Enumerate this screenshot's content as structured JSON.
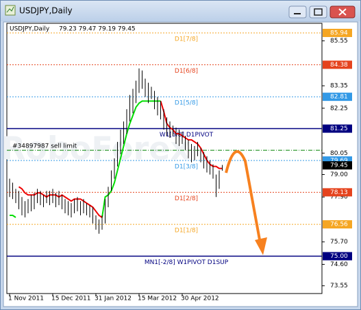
{
  "window_title": "USDJPY,Daily",
  "chart_data": {
    "type": "hilo",
    "title": "USDJPY,Daily",
    "quote": "79.23 79.47 79.19 79.45",
    "watermark": "RoboForex",
    "categories": [
      "1 Nov 2011",
      null,
      null,
      null,
      null,
      null,
      null,
      null,
      null,
      null,
      null,
      null,
      null,
      null,
      "15 Dec 2011",
      null,
      null,
      null,
      null,
      null,
      null,
      null,
      null,
      null,
      null,
      null,
      null,
      null,
      "31 Jan 2012",
      null,
      null,
      null,
      null,
      null,
      null,
      null,
      null,
      null,
      null,
      null,
      null,
      null,
      "15 Mar 2012",
      null,
      null,
      null,
      null,
      null,
      null,
      null,
      null,
      null,
      null,
      null,
      null,
      null,
      "30 Apr 2012",
      null,
      null,
      null,
      null,
      null,
      null,
      null,
      null,
      null,
      null,
      null,
      null,
      null
    ],
    "high": [
      78.8,
      78.6,
      78.3,
      78.2,
      77.9,
      77.7,
      77.8,
      78.0,
      78.1,
      78.3,
      78.2,
      78.0,
      78.2,
      78.2,
      78.3,
      78.1,
      78.2,
      78.0,
      77.8,
      77.7,
      77.6,
      77.8,
      77.9,
      77.7,
      77.8,
      77.6,
      77.5,
      77.4,
      77.0,
      76.8,
      77.0,
      77.8,
      78.4,
      79.2,
      79.8,
      80.6,
      81.2,
      81.6,
      82.2,
      82.9,
      83.2,
      83.6,
      84.2,
      84.1,
      83.7,
      83.5,
      83.3,
      83.1,
      82.8,
      82.6,
      82.2,
      81.8,
      81.6,
      81.4,
      81.3,
      81.2,
      81.1,
      80.9,
      80.7,
      80.5,
      80.4,
      80.6,
      80.3,
      80.1,
      79.9,
      79.7,
      79.5,
      79.0,
      79.2,
      79.47
    ],
    "low": [
      77.9,
      77.8,
      77.6,
      77.3,
      77.0,
      76.9,
      77.1,
      77.2,
      77.3,
      77.6,
      77.5,
      77.4,
      77.6,
      77.5,
      77.6,
      77.4,
      77.5,
      77.3,
      77.1,
      77.0,
      76.9,
      77.1,
      77.2,
      77.0,
      77.1,
      77.0,
      76.9,
      76.6,
      76.3,
      76.1,
      76.3,
      76.6,
      77.4,
      78.2,
      78.8,
      79.4,
      80.0,
      80.5,
      81.0,
      81.6,
      82.0,
      82.5,
      83.0,
      83.2,
      82.8,
      82.5,
      82.7,
      82.2,
      81.9,
      81.7,
      81.2,
      80.9,
      80.8,
      80.9,
      80.5,
      80.4,
      80.5,
      80.2,
      79.8,
      79.6,
      79.7,
      79.9,
      79.6,
      79.3,
      79.1,
      79.0,
      78.8,
      77.9,
      78.3,
      79.19
    ],
    "color": "#000000",
    "series": [
      {
        "color": "#00dd00",
        "values": [
          77.0,
          77.0,
          76.9,
          null,
          null,
          null,
          null,
          null,
          null,
          null,
          null,
          null,
          null,
          null,
          null,
          null,
          null,
          null,
          null,
          null,
          null,
          null,
          null,
          null,
          null,
          null,
          null,
          null,
          null,
          null,
          76.9,
          77.9,
          78.0,
          78.2,
          78.6,
          79.2,
          79.8,
          80.4,
          81.0,
          81.5,
          81.9,
          82.3,
          82.5,
          82.6,
          82.6,
          82.6,
          82.6,
          82.6,
          82.6,
          82.6,
          null,
          null,
          null,
          null,
          null,
          null,
          null,
          null,
          null,
          null,
          null,
          null,
          null,
          null,
          null,
          null,
          null,
          null,
          null,
          null
        ]
      },
      {
        "color": "#ee0000",
        "values": [
          null,
          null,
          null,
          78.4,
          78.3,
          78.1,
          78.0,
          78.0,
          78.0,
          78.1,
          78.1,
          78.0,
          77.9,
          78.0,
          78.0,
          78.0,
          77.9,
          78.0,
          77.9,
          77.8,
          77.7,
          77.8,
          77.8,
          77.8,
          77.7,
          77.6,
          77.5,
          77.4,
          77.2,
          77.0,
          76.9,
          null,
          null,
          null,
          null,
          null,
          null,
          null,
          null,
          null,
          null,
          null,
          null,
          null,
          null,
          null,
          null,
          null,
          null,
          82.6,
          82.1,
          81.5,
          81.3,
          81.2,
          81.0,
          81.0,
          80.9,
          80.8,
          80.7,
          80.7,
          80.6,
          80.5,
          80.3,
          80.0,
          79.7,
          79.5,
          79.4,
          79.4,
          79.3,
          79.3
        ]
      }
    ],
    "levels": [
      {
        "label": "D1[7/8]",
        "value": 85.94,
        "price_label": "85.94",
        "color": "#f5a623",
        "style": "dotted"
      },
      {
        "label": "D1[6/8]",
        "value": 84.38,
        "price_label": "84.38",
        "color": "#e5431d",
        "style": "dotted"
      },
      {
        "label": "D1[5/8]",
        "value": 82.81,
        "price_label": "82.81",
        "color": "#3399e6",
        "style": "dotted"
      },
      {
        "label": "W1[5/8] D1PIVOT",
        "value": 81.25,
        "price_label": "81.25",
        "color": "#000080",
        "style": "solid"
      },
      {
        "label": "D1[3/8]",
        "value": 79.69,
        "price_label": "79.69",
        "color": "#3399e6",
        "style": "dotted"
      },
      {
        "label": "D1[2/8]",
        "value": 78.13,
        "price_label": "78.13",
        "color": "#e5431d",
        "style": "dotted"
      },
      {
        "label": "D1[1/8]",
        "value": 76.56,
        "price_label": "76.56",
        "color": "#f5a623",
        "style": "dotted"
      },
      {
        "label": "MN1[-2/8] W1PIVOT D1SUP",
        "value": 75.0,
        "price_label": "75.00",
        "color": "#000080",
        "style": "solid"
      }
    ],
    "order_line": {
      "label": "#34897987 sell limit",
      "value": 80.19,
      "color": "#008000"
    },
    "bid": {
      "value": 79.45,
      "label": "79.45"
    },
    "ylim": [
      73.17,
      86.41
    ],
    "yticks": [
      85.55,
      83.35,
      82.25,
      80.05,
      {
        "value": 79,
        "label": "79.00"
      },
      {
        "value": 77.9,
        "label": "77.90"
      },
      {
        "value": 75.7,
        "label": "75.70"
      },
      {
        "value": 74.6,
        "label": "74.60"
      },
      73.55
    ]
  }
}
